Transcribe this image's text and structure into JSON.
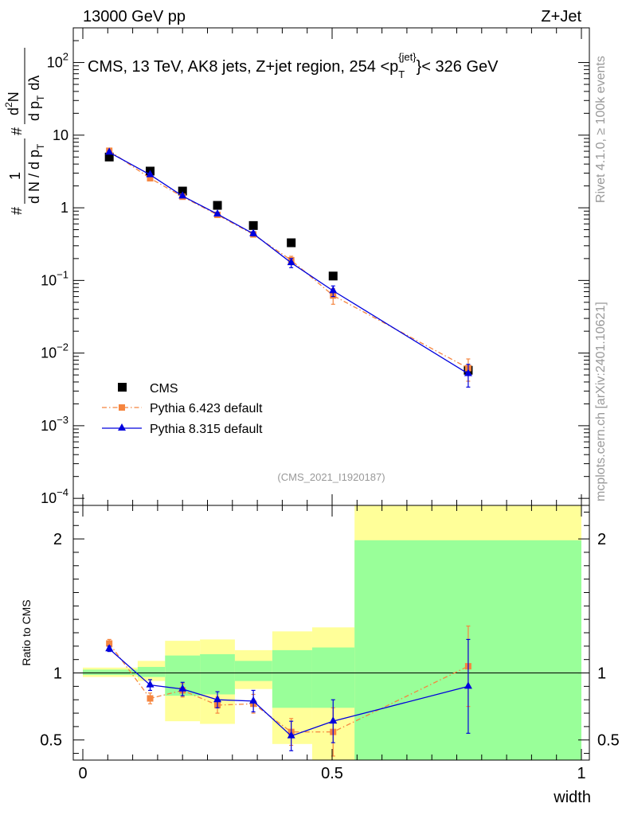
{
  "header": {
    "energy_label": "13000 GeV pp",
    "process_label": "Z+Jet"
  },
  "side_labels": {
    "rivet": "Rivet 4.1.0, ≥ 100k events",
    "site": "mcplots.cern.ch [arXiv:2401.10621]"
  },
  "chart_data": [
    {
      "panel": "main",
      "type": "scatter",
      "title_parts": {
        "pre": "CMS, 13 TeV, AK8 jets, Z+jet region, 254 <p",
        "sub": "T",
        "sup": "{jet}",
        "post": "}< 326 GeV"
      },
      "analysis_tag": "(CMS_2021_I1920187)",
      "ylabel_parts": {
        "hash_top": "#",
        "one": "1",
        "den": "d N / d p",
        "den_sub": "T",
        "hash_mid": "#",
        "num": "d",
        "num_sup": "2",
        "num_n": "N",
        "num2": "d p",
        "num2_sub": "T",
        "num2_tail": "dλ"
      },
      "y_scale": "log",
      "ylim": [
        8e-05,
        300
      ],
      "xlim": [
        0,
        1
      ],
      "y_ticks": [
        {
          "value": 0.0001,
          "base": "10",
          "exp": "−4"
        },
        {
          "value": 0.001,
          "base": "10",
          "exp": "−3"
        },
        {
          "value": 0.01,
          "base": "10",
          "exp": "−2"
        },
        {
          "value": 0.1,
          "base": "10",
          "exp": "−1"
        },
        {
          "value": 1,
          "base": "1",
          "exp": ""
        },
        {
          "value": 10,
          "base": "10",
          "exp": ""
        },
        {
          "value": 100,
          "base": "10",
          "exp": "2"
        }
      ],
      "series": [
        {
          "name": "CMS",
          "style": "square",
          "color": "#000000",
          "x": [
            0.053,
            0.135,
            0.2,
            0.27,
            0.342,
            0.418,
            0.502,
            0.773
          ],
          "y": [
            5.0,
            3.2,
            1.7,
            1.08,
            0.57,
            0.33,
            0.115,
            0.0058
          ],
          "yerr": [
            0,
            0,
            0,
            0,
            0,
            0,
            0,
            0
          ]
        },
        {
          "name": "Pythia 6.423 default",
          "style": "square-dashdot",
          "color": "#f5853f",
          "x": [
            0.053,
            0.135,
            0.2,
            0.27,
            0.342,
            0.418,
            0.502,
            0.773
          ],
          "y": [
            6.1,
            2.55,
            1.42,
            0.8,
            0.43,
            0.19,
            0.062,
            0.0062
          ],
          "yerr": [
            0.2,
            0.1,
            0.06,
            0.04,
            0.03,
            0.025,
            0.015,
            0.0021
          ]
        },
        {
          "name": "Pythia 8.315 default",
          "style": "triangle-solid",
          "color": "#0000dd",
          "x": [
            0.053,
            0.135,
            0.2,
            0.27,
            0.342,
            0.418,
            0.502,
            0.773
          ],
          "y": [
            5.8,
            2.85,
            1.45,
            0.82,
            0.44,
            0.175,
            0.072,
            0.0052
          ],
          "yerr": [
            0.2,
            0.12,
            0.07,
            0.04,
            0.03,
            0.025,
            0.012,
            0.0018
          ]
        }
      ],
      "legend_position": "bottom-left"
    },
    {
      "panel": "ratio",
      "type": "line",
      "ylabel": "Ratio to CMS",
      "xlabel": "width",
      "ylim": [
        0.35,
        2.25
      ],
      "xlim": [
        0,
        1
      ],
      "y_ticks": [
        {
          "value": 0.5,
          "label": "0.5"
        },
        {
          "value": 1,
          "label": "1"
        },
        {
          "value": 2,
          "label": "2"
        }
      ],
      "x_ticks": [
        {
          "value": 0,
          "label": "0"
        },
        {
          "value": 0.5,
          "label": "0.5"
        },
        {
          "value": 1,
          "label": "1"
        }
      ],
      "reference_line": 1,
      "bands": [
        {
          "x0": 0.0,
          "x1": 0.11,
          "yellow": [
            0.97,
            1.04
          ],
          "green": [
            0.985,
            1.025
          ]
        },
        {
          "x0": 0.11,
          "x1": 0.165,
          "yellow": [
            0.94,
            1.09
          ],
          "green": [
            0.97,
            1.045
          ]
        },
        {
          "x0": 0.165,
          "x1": 0.235,
          "yellow": [
            0.64,
            1.24
          ],
          "green": [
            0.83,
            1.13
          ]
        },
        {
          "x0": 0.235,
          "x1": 0.305,
          "yellow": [
            0.62,
            1.25
          ],
          "green": [
            0.84,
            1.14
          ]
        },
        {
          "x0": 0.305,
          "x1": 0.38,
          "yellow": [
            0.88,
            1.17
          ],
          "green": [
            0.94,
            1.09
          ]
        },
        {
          "x0": 0.38,
          "x1": 0.46,
          "yellow": [
            0.47,
            1.31
          ],
          "green": [
            0.74,
            1.17
          ]
        },
        {
          "x0": 0.46,
          "x1": 0.545,
          "yellow": [
            0.35,
            1.34
          ],
          "green": [
            0.74,
            1.19
          ]
        },
        {
          "x0": 0.545,
          "x1": 1.0,
          "yellow": [
            0.35,
            2.25
          ],
          "green": [
            0.35,
            1.99
          ]
        }
      ],
      "series": [
        {
          "name": "Pythia 6.423 default",
          "style": "square-dashdot",
          "color": "#f5853f",
          "x": [
            0.053,
            0.135,
            0.2,
            0.27,
            0.342,
            0.418,
            0.502,
            0.773
          ],
          "y": [
            1.22,
            0.81,
            0.87,
            0.76,
            0.77,
            0.56,
            0.56,
            1.05
          ],
          "yerr": [
            0.03,
            0.04,
            0.05,
            0.06,
            0.07,
            0.1,
            0.18,
            0.3
          ]
        },
        {
          "name": "Pythia 8.315 default",
          "style": "triangle-solid",
          "color": "#0000dd",
          "x": [
            0.053,
            0.135,
            0.2,
            0.27,
            0.342,
            0.418,
            0.502,
            0.773
          ],
          "y": [
            1.18,
            0.91,
            0.88,
            0.8,
            0.79,
            0.53,
            0.64,
            0.9
          ],
          "yerr": [
            0.02,
            0.04,
            0.05,
            0.06,
            0.08,
            0.11,
            0.16,
            0.35
          ]
        }
      ]
    }
  ]
}
